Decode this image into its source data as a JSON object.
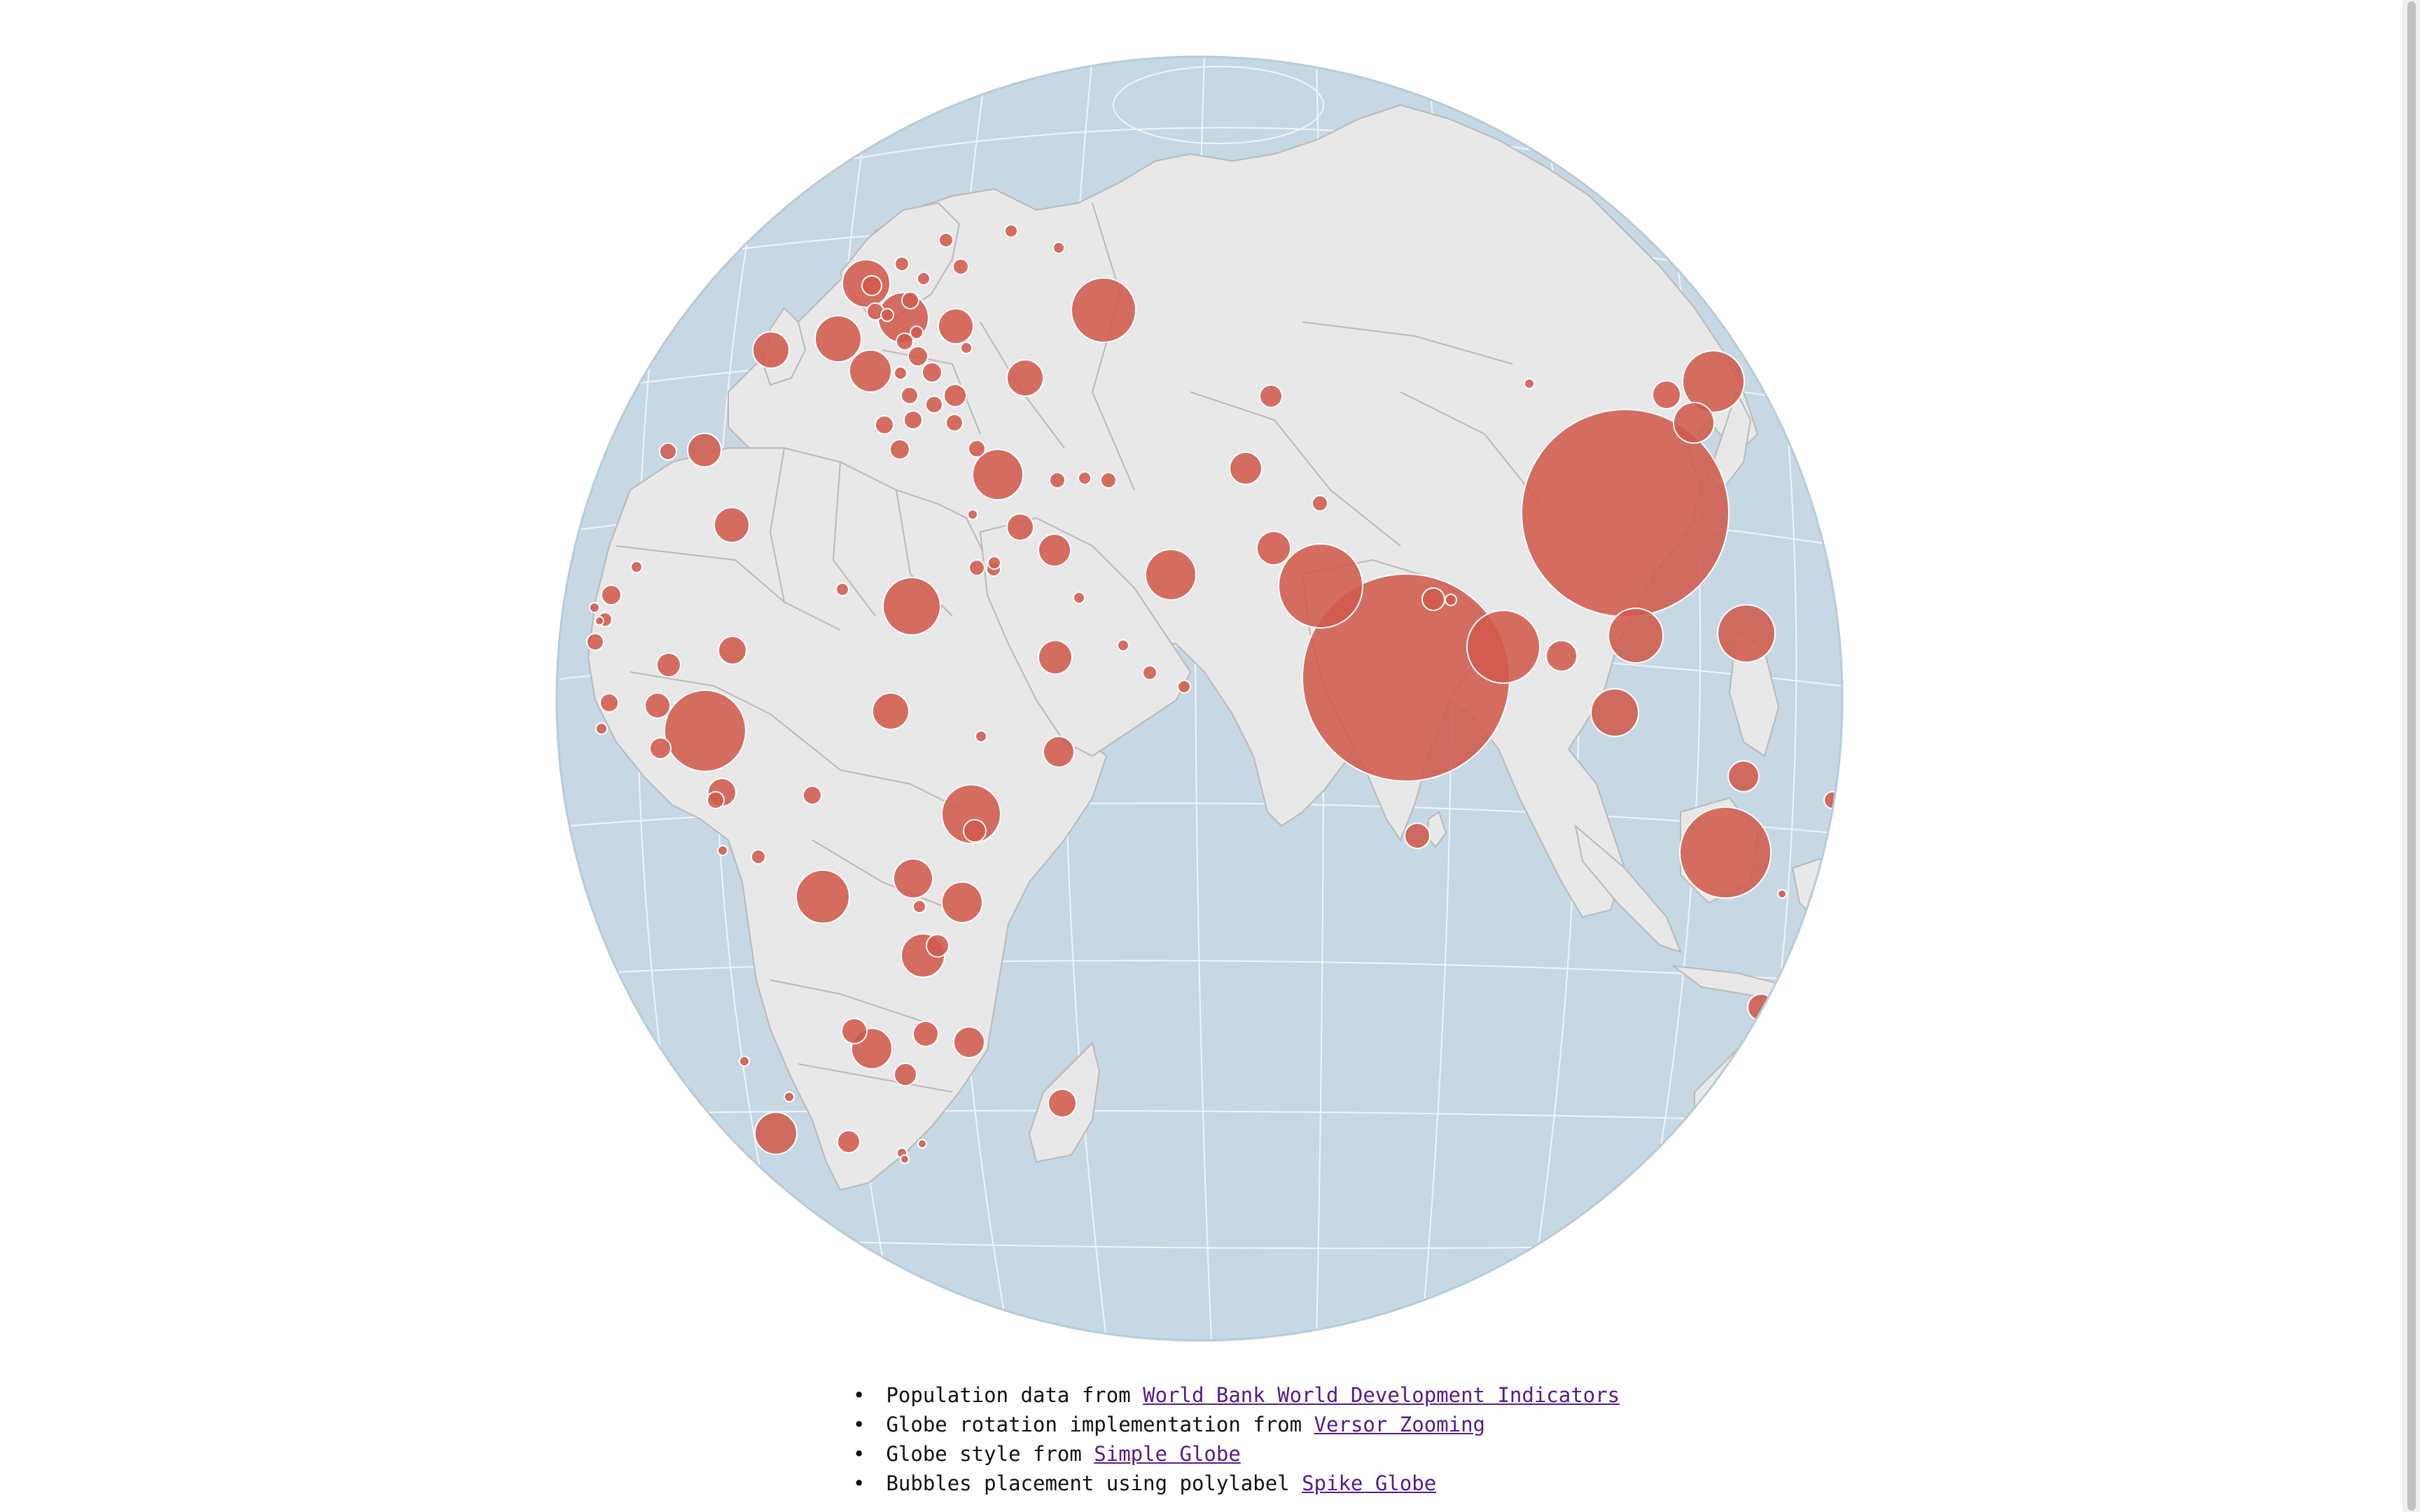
{
  "map": {
    "type": "orthographic-globe-bubble-map",
    "metric": "Population",
    "colors": {
      "ocean": "#c5d8e4",
      "land": "#e8e8e8",
      "borders": "#b9b9b9",
      "graticule": "#ffffff",
      "bubble_fill": "#d05a4c",
      "bubble_stroke": "#ffffff"
    },
    "visible_regions": [
      "Europe",
      "Africa",
      "Middle East",
      "South Asia",
      "East Asia",
      "Southeast Asia",
      "Indian Ocean"
    ]
  },
  "credits": [
    {
      "text": "Population data from ",
      "link": "World Bank World Development Indicators"
    },
    {
      "text": "Globe rotation implementation from ",
      "link": "Versor Zooming"
    },
    {
      "text": "Globe style from ",
      "link": "Simple Globe"
    },
    {
      "text": "Bubbles placement using polylabel ",
      "link": "Spike Globe"
    }
  ]
}
